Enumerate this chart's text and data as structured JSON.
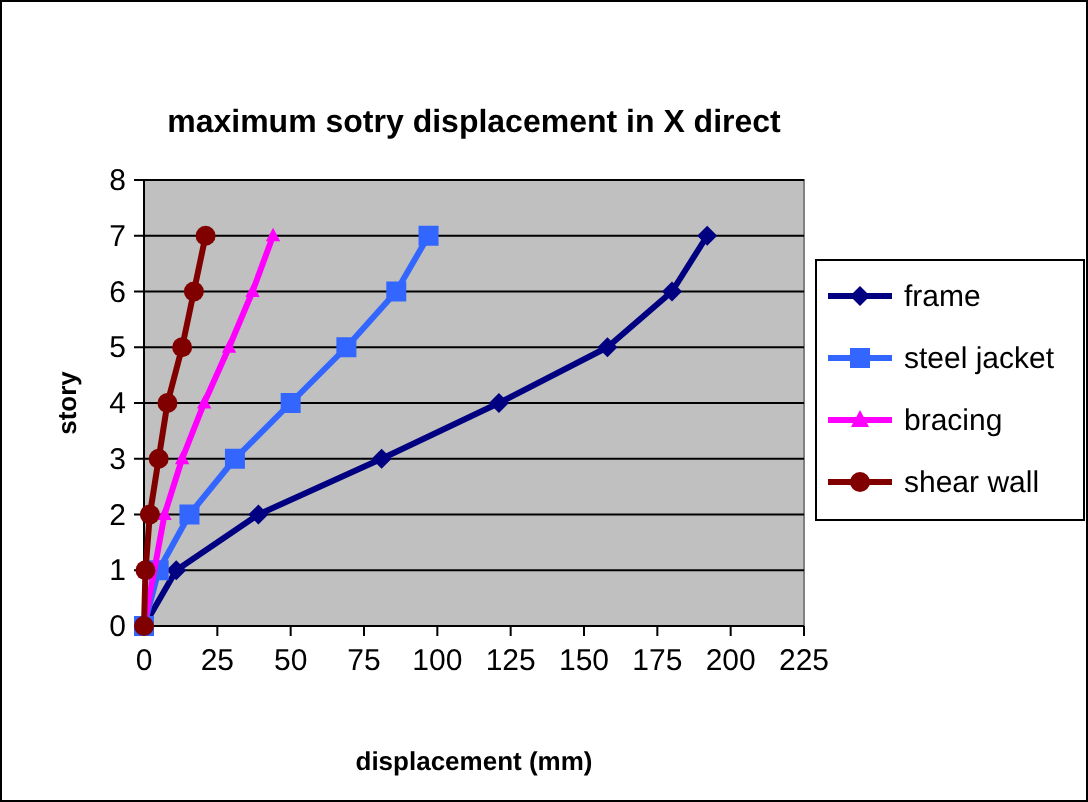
{
  "chart_data": {
    "type": "line",
    "title": "maximum sotry displacement  in X direct",
    "xlabel": "displacement (mm)",
    "ylabel": "story",
    "xlim": [
      0,
      225
    ],
    "xticks": [
      0,
      25,
      50,
      75,
      100,
      125,
      150,
      175,
      200,
      225
    ],
    "ylim": [
      0,
      8
    ],
    "yticks": [
      0,
      1,
      2,
      3,
      4,
      5,
      6,
      7,
      8
    ],
    "grid": "y",
    "legend": "right",
    "series": [
      {
        "name": "frame",
        "color": "#000080",
        "marker": "diamond",
        "x": [
          0,
          11,
          39,
          81,
          121,
          158,
          180,
          192
        ],
        "values": [
          0,
          1,
          2,
          3,
          4,
          5,
          6,
          7
        ]
      },
      {
        "name": "steel jacket",
        "color": "#3366ff",
        "marker": "square",
        "x": [
          0,
          5,
          15.5,
          31,
          50,
          69,
          86,
          97
        ],
        "values": [
          0,
          1,
          2,
          3,
          4,
          5,
          6,
          7
        ]
      },
      {
        "name": "bracing",
        "color": "#ff00ff",
        "marker": "triangle",
        "x": [
          0,
          2.5,
          7,
          13,
          20.5,
          29,
          37,
          44
        ],
        "values": [
          0,
          null,
          2,
          3,
          4,
          5,
          6,
          7
        ]
      },
      {
        "name": "shear wall",
        "color": "#800000",
        "marker": "circle",
        "x": [
          0,
          0.5,
          2,
          5,
          8,
          13,
          17,
          21
        ],
        "values": [
          0,
          1,
          2,
          3,
          4,
          5,
          6,
          7
        ]
      }
    ]
  }
}
